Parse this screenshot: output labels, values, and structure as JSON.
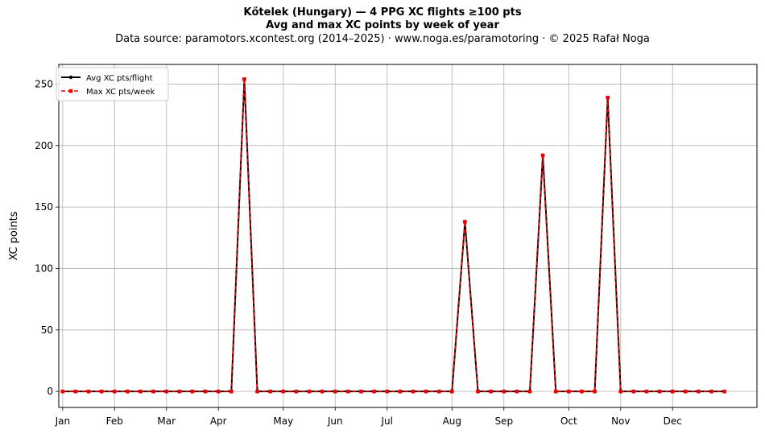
{
  "chart_data": {
    "type": "line",
    "title": "Kőtelek (Hungary)  —  4 PPG XC flights ≥100 pts",
    "subtitle": "Avg and max XC points by week of year",
    "source": "Data source: paramotors.xcontest.org (2014–2025)  ·  www.noga.es/paramotoring  ·  © 2025 Rafał Noga",
    "xlabel": "",
    "ylabel": "XC points",
    "xlim": [
      -0.3,
      53.5
    ],
    "ylim": [
      -13,
      266
    ],
    "grid": true,
    "legend_position": "top-left",
    "x_ticks": [
      {
        "label": "Jan",
        "x": 0
      },
      {
        "label": "Feb",
        "x": 4
      },
      {
        "label": "Mar",
        "x": 8
      },
      {
        "label": "Apr",
        "x": 12
      },
      {
        "label": "May",
        "x": 17
      },
      {
        "label": "Jun",
        "x": 21
      },
      {
        "label": "Jul",
        "x": 25
      },
      {
        "label": "Aug",
        "x": 30
      },
      {
        "label": "Sep",
        "x": 34
      },
      {
        "label": "Oct",
        "x": 39
      },
      {
        "label": "Nov",
        "x": 43
      },
      {
        "label": "Dec",
        "x": 47
      }
    ],
    "y_ticks": [
      0,
      50,
      100,
      150,
      200,
      250
    ],
    "x": [
      0,
      1,
      2,
      3,
      4,
      5,
      6,
      7,
      8,
      9,
      10,
      11,
      12,
      13,
      14,
      15,
      16,
      17,
      18,
      19,
      20,
      21,
      22,
      23,
      24,
      25,
      26,
      27,
      28,
      29,
      30,
      31,
      32,
      33,
      34,
      35,
      36,
      37,
      38,
      39,
      40,
      41,
      42,
      43,
      44,
      45,
      46,
      47,
      48,
      49,
      50,
      51
    ],
    "series": [
      {
        "name": "Avg XC pts/flight",
        "color": "#000000",
        "values": [
          0,
          0,
          0,
          0,
          0,
          0,
          0,
          0,
          0,
          0,
          0,
          0,
          0,
          0,
          254,
          0,
          0,
          0,
          0,
          0,
          0,
          0,
          0,
          0,
          0,
          0,
          0,
          0,
          0,
          0,
          0,
          138,
          0,
          0,
          0,
          0,
          0,
          192,
          0,
          0,
          0,
          0,
          239,
          0,
          0,
          0,
          0,
          0,
          0,
          0,
          0,
          0
        ]
      },
      {
        "name": "Max XC pts/week",
        "color": "#ee0000",
        "values": [
          0,
          0,
          0,
          0,
          0,
          0,
          0,
          0,
          0,
          0,
          0,
          0,
          0,
          0,
          254,
          0,
          0,
          0,
          0,
          0,
          0,
          0,
          0,
          0,
          0,
          0,
          0,
          0,
          0,
          0,
          0,
          138,
          0,
          0,
          0,
          0,
          0,
          192,
          0,
          0,
          0,
          0,
          239,
          0,
          0,
          0,
          0,
          0,
          0,
          0,
          0,
          0
        ]
      }
    ]
  }
}
